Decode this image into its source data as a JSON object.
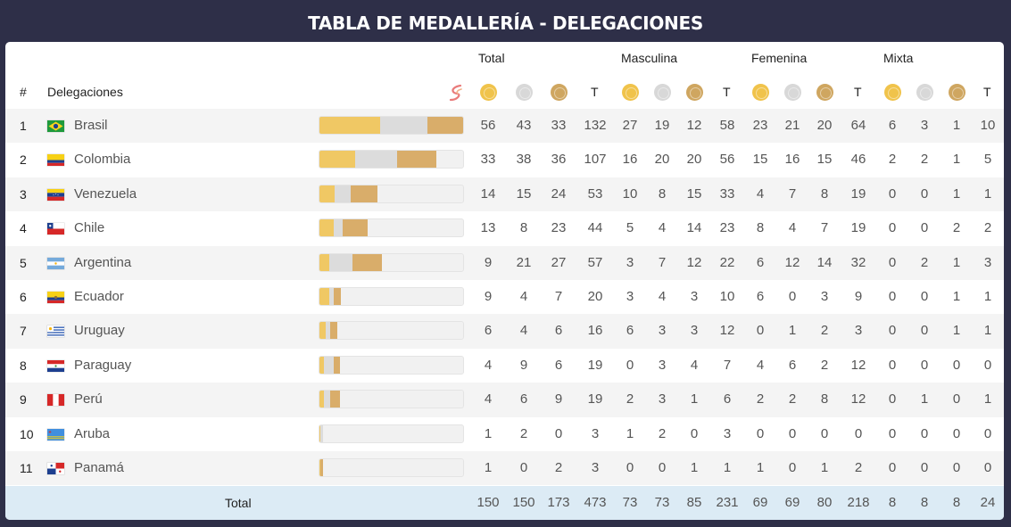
{
  "title": "TABLA DE MEDALLERÍA - DELEGACIONES",
  "headers": {
    "rank": "#",
    "delegations": "Delegaciones",
    "groups": [
      "Total",
      "Masculina",
      "Femenina",
      "Mixta"
    ],
    "total_abbr": "T"
  },
  "medal_colors": {
    "gold": "#f0c34b",
    "silver": "#d8d8d8",
    "bronze": "#cfa660"
  },
  "rows": [
    {
      "rank": "1",
      "country": "Brasil",
      "flag": "brazil-flag",
      "values": [
        "56",
        "43",
        "33",
        "132",
        "27",
        "19",
        "12",
        "58",
        "23",
        "21",
        "20",
        "64",
        "6",
        "3",
        "1",
        "10"
      ]
    },
    {
      "rank": "2",
      "country": "Colombia",
      "flag": "colombia-flag",
      "values": [
        "33",
        "38",
        "36",
        "107",
        "16",
        "20",
        "20",
        "56",
        "15",
        "16",
        "15",
        "46",
        "2",
        "2",
        "1",
        "5"
      ]
    },
    {
      "rank": "3",
      "country": "Venezuela",
      "flag": "venezuela-flag",
      "values": [
        "14",
        "15",
        "24",
        "53",
        "10",
        "8",
        "15",
        "33",
        "4",
        "7",
        "8",
        "19",
        "0",
        "0",
        "1",
        "1"
      ]
    },
    {
      "rank": "4",
      "country": "Chile",
      "flag": "chile-flag",
      "values": [
        "13",
        "8",
        "23",
        "44",
        "5",
        "4",
        "14",
        "23",
        "8",
        "4",
        "7",
        "19",
        "0",
        "0",
        "2",
        "2"
      ]
    },
    {
      "rank": "5",
      "country": "Argentina",
      "flag": "argentina-flag",
      "values": [
        "9",
        "21",
        "27",
        "57",
        "3",
        "7",
        "12",
        "22",
        "6",
        "12",
        "14",
        "32",
        "0",
        "2",
        "1",
        "3"
      ]
    },
    {
      "rank": "6",
      "country": "Ecuador",
      "flag": "ecuador-flag",
      "values": [
        "9",
        "4",
        "7",
        "20",
        "3",
        "4",
        "3",
        "10",
        "6",
        "0",
        "3",
        "9",
        "0",
        "0",
        "1",
        "1"
      ]
    },
    {
      "rank": "7",
      "country": "Uruguay",
      "flag": "uruguay-flag",
      "values": [
        "6",
        "4",
        "6",
        "16",
        "6",
        "3",
        "3",
        "12",
        "0",
        "1",
        "2",
        "3",
        "0",
        "0",
        "1",
        "1"
      ]
    },
    {
      "rank": "8",
      "country": "Paraguay",
      "flag": "paraguay-flag",
      "values": [
        "4",
        "9",
        "6",
        "19",
        "0",
        "3",
        "4",
        "7",
        "4",
        "6",
        "2",
        "12",
        "0",
        "0",
        "0",
        "0"
      ]
    },
    {
      "rank": "9",
      "country": "Perú",
      "flag": "peru-flag",
      "values": [
        "4",
        "6",
        "9",
        "19",
        "2",
        "3",
        "1",
        "6",
        "2",
        "2",
        "8",
        "12",
        "0",
        "1",
        "0",
        "1"
      ]
    },
    {
      "rank": "10",
      "country": "Aruba",
      "flag": "aruba-flag",
      "values": [
        "1",
        "2",
        "0",
        "3",
        "1",
        "2",
        "0",
        "3",
        "0",
        "0",
        "0",
        "0",
        "0",
        "0",
        "0",
        "0"
      ]
    },
    {
      "rank": "11",
      "country": "Panamá",
      "flag": "panama-flag",
      "values": [
        "1",
        "0",
        "2",
        "3",
        "0",
        "0",
        "1",
        "1",
        "1",
        "0",
        "1",
        "2",
        "0",
        "0",
        "0",
        "0"
      ]
    }
  ],
  "totals": {
    "label": "Total",
    "values": [
      "150",
      "150",
      "173",
      "473",
      "73",
      "73",
      "85",
      "231",
      "69",
      "69",
      "80",
      "218",
      "8",
      "8",
      "8",
      "24"
    ]
  }
}
